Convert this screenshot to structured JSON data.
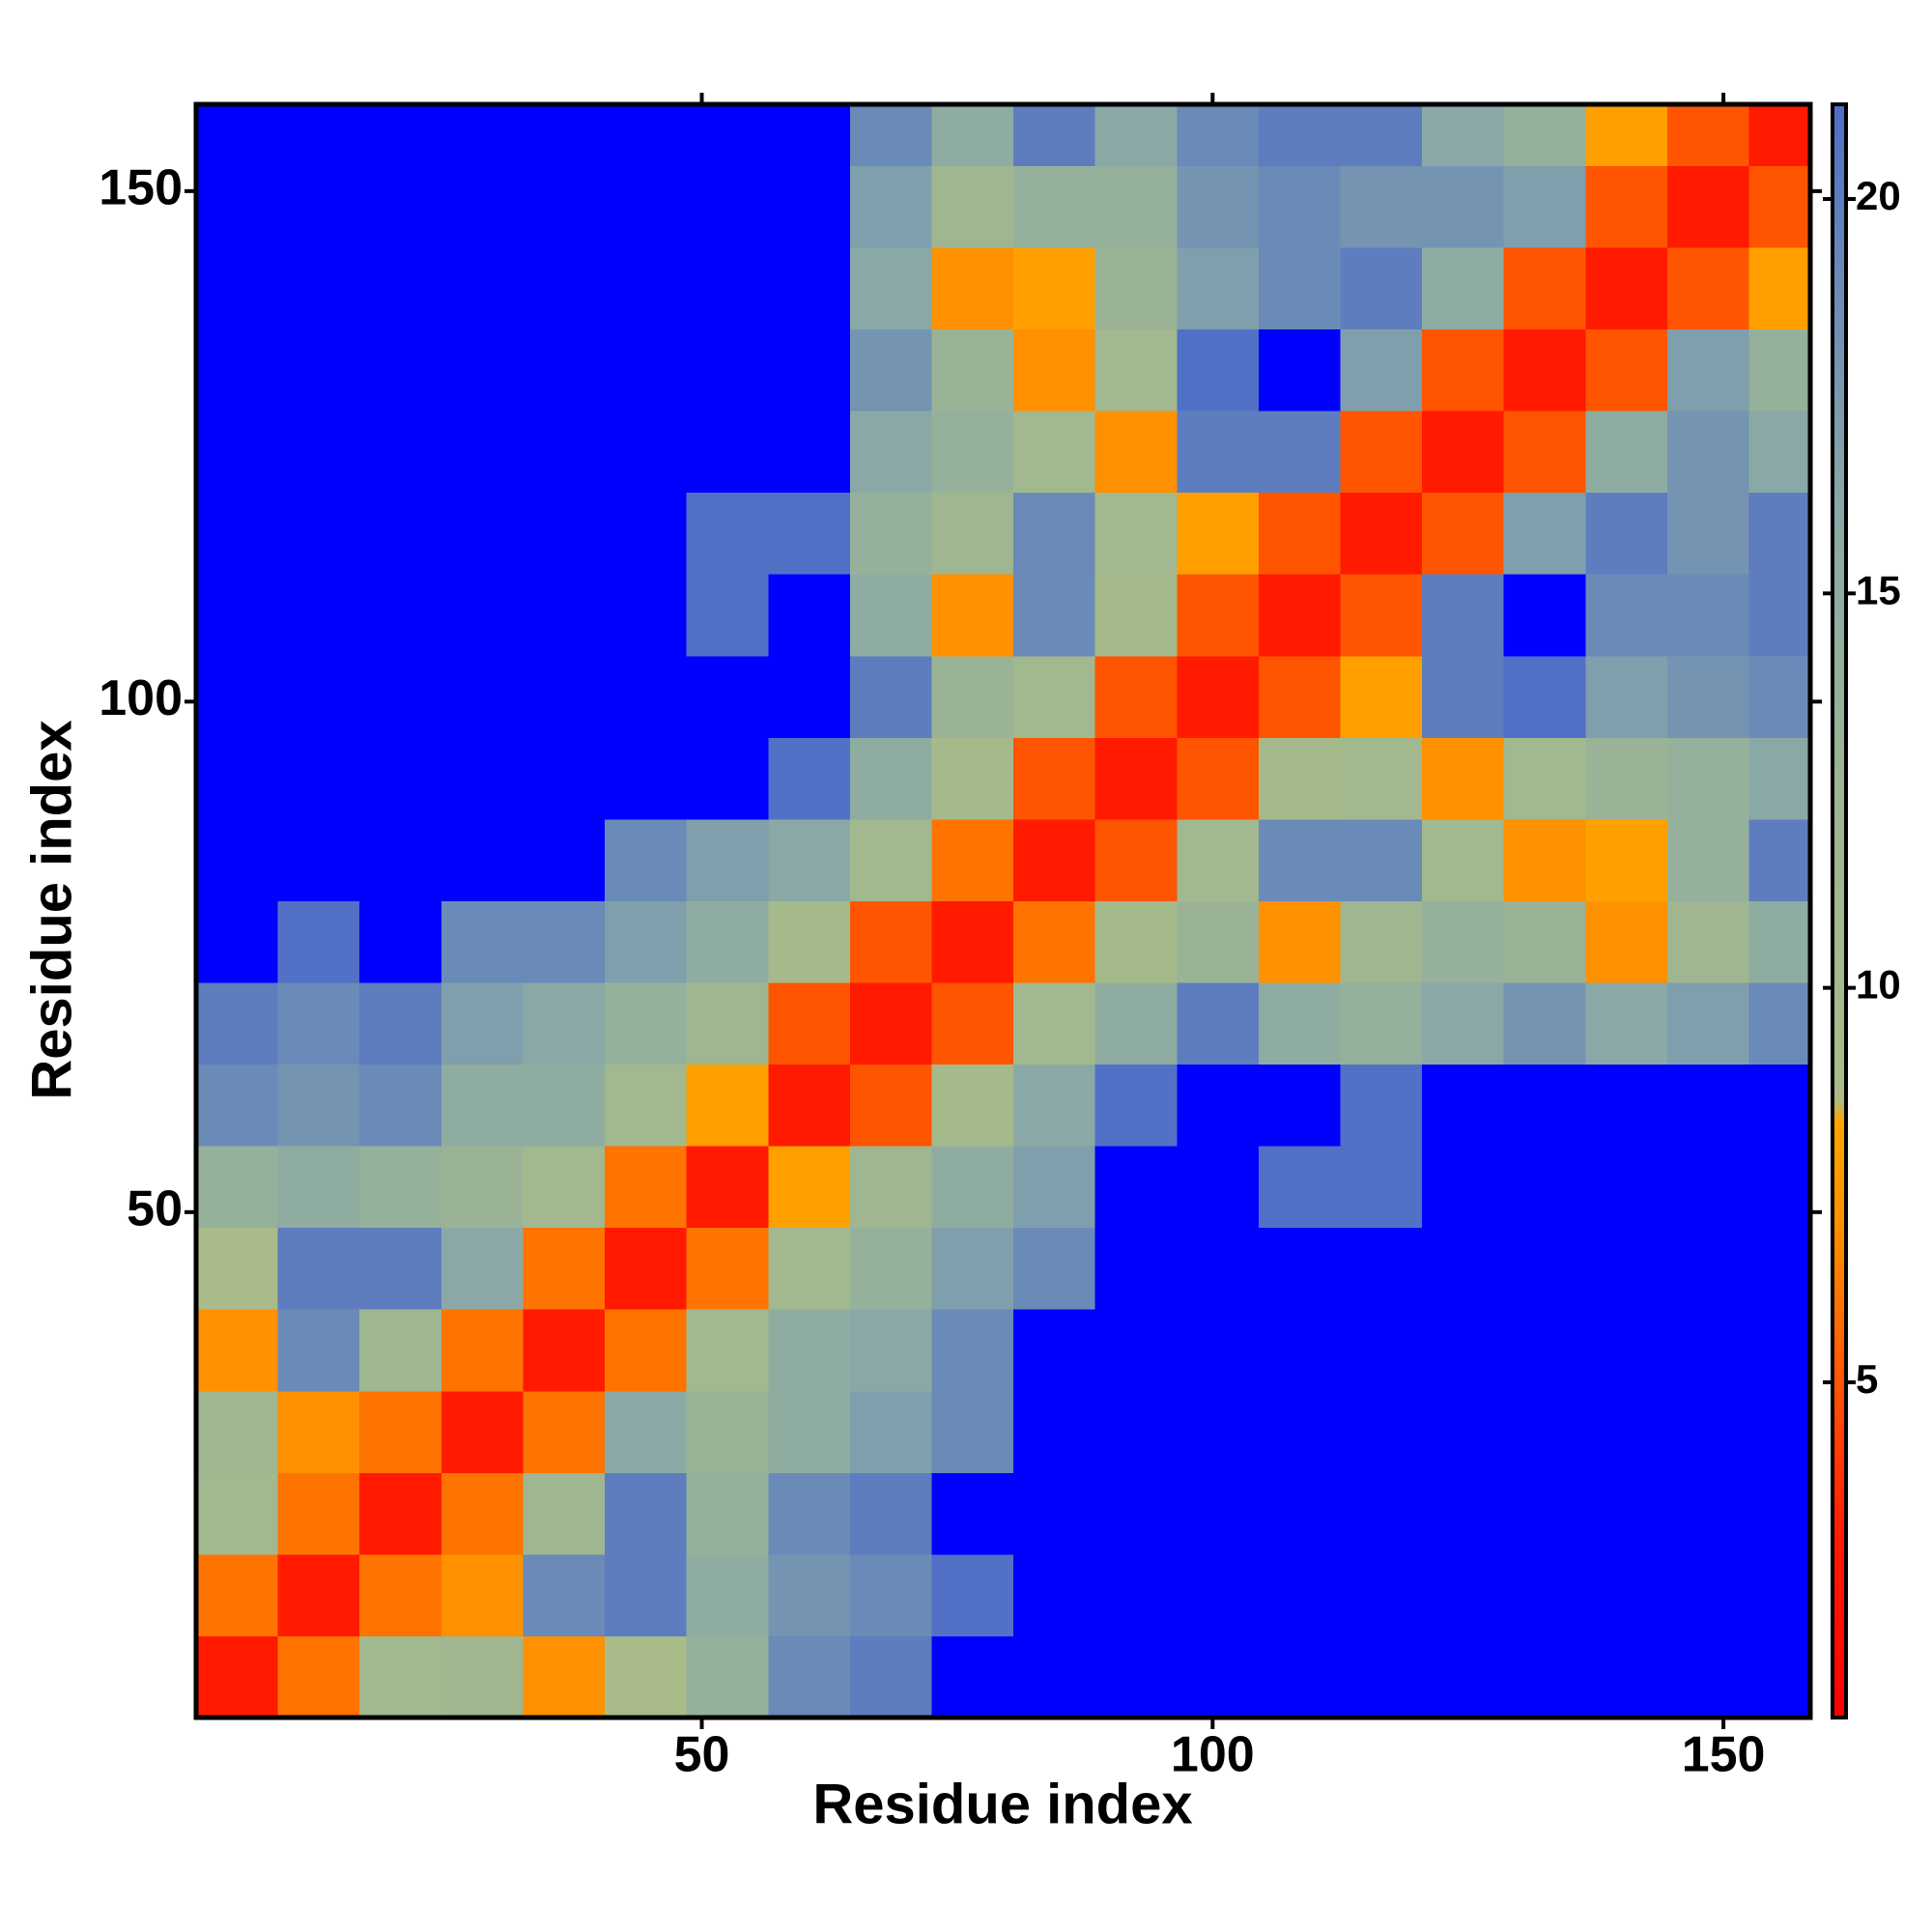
{
  "chart_data": {
    "type": "heatmap",
    "xlabel": "Residue index",
    "ylabel": "Residue index",
    "xbins": [
      0.5,
      8.5,
      16.5,
      24.5,
      32.5,
      40.5,
      48.5,
      56.5,
      64.5,
      72.5,
      80.5,
      88.5,
      96.5,
      104.5,
      112.5,
      120.5,
      128.5,
      136.5,
      144.5,
      152.5,
      158.5
    ],
    "ybins": [
      0.5,
      8.5,
      16.5,
      24.5,
      32.5,
      40.5,
      48.5,
      56.5,
      64.5,
      72.5,
      80.5,
      88.5,
      96.5,
      104.5,
      112.5,
      120.5,
      128.5,
      136.5,
      144.5,
      152.5,
      158.5
    ],
    "xlim": [
      0.5,
      158.5
    ],
    "ylim": [
      0.5,
      158.5
    ],
    "xticks": [
      50,
      100,
      150
    ],
    "yticks": [
      50,
      100,
      150
    ],
    "values": [
      [
        3,
        6,
        11,
        12,
        7,
        9,
        14,
        19,
        20,
        22,
        25,
        25,
        25,
        25,
        25,
        25,
        25,
        25,
        25,
        25
      ],
      [
        6,
        3,
        6,
        7,
        19,
        20,
        15,
        18,
        19,
        21,
        25,
        25,
        25,
        25,
        25,
        25,
        25,
        25,
        25,
        25
      ],
      [
        11,
        6,
        3,
        6,
        12,
        20,
        14,
        19,
        20,
        22,
        25,
        25,
        25,
        25,
        25,
        25,
        25,
        25,
        25,
        25
      ],
      [
        12,
        7,
        6,
        3,
        6,
        16,
        13,
        15,
        17,
        19,
        25,
        25,
        25,
        25,
        25,
        25,
        25,
        25,
        25,
        25
      ],
      [
        7,
        19,
        12,
        6,
        3,
        6,
        11,
        15,
        16,
        19,
        22,
        25,
        25,
        25,
        25,
        25,
        25,
        25,
        25,
        25
      ],
      [
        9,
        20,
        20,
        16,
        6,
        3,
        6,
        11,
        14,
        17,
        19,
        25,
        25,
        25,
        22,
        25,
        25,
        25,
        25,
        25
      ],
      [
        14,
        15,
        14,
        13,
        11,
        6,
        3,
        8,
        12,
        15,
        17,
        22,
        25,
        21,
        21,
        25,
        25,
        25,
        25,
        25
      ],
      [
        19,
        18,
        19,
        15,
        15,
        11,
        8,
        3,
        5,
        10,
        16,
        21,
        24,
        22,
        21,
        25,
        25,
        25,
        25,
        25
      ],
      [
        20,
        19,
        20,
        17,
        16,
        14,
        12,
        5,
        3,
        5,
        11,
        15,
        20,
        15,
        14,
        16,
        18,
        16,
        17,
        19
      ],
      [
        22,
        21,
        22,
        19,
        19,
        17,
        15,
        10,
        5,
        3,
        6,
        10,
        13,
        7,
        12,
        14,
        13,
        7,
        12,
        15
      ],
      [
        25,
        25,
        25,
        25,
        22,
        19,
        17,
        16,
        11,
        6,
        3,
        5,
        11,
        19,
        19,
        11,
        7,
        8,
        14,
        20
      ],
      [
        25,
        25,
        25,
        25,
        25,
        25,
        22,
        21,
        15,
        10,
        5,
        3,
        5,
        10,
        11,
        7,
        11,
        13,
        14,
        16
      ],
      [
        25,
        25,
        25,
        25,
        25,
        25,
        25,
        24,
        20,
        13,
        11,
        5,
        3,
        5,
        8,
        20,
        21,
        17,
        18,
        19
      ],
      [
        25,
        25,
        25,
        25,
        25,
        25,
        21,
        22,
        15,
        7,
        19,
        10,
        5,
        3,
        5,
        20,
        22,
        19,
        19,
        20
      ],
      [
        25,
        25,
        25,
        25,
        25,
        22,
        21,
        21,
        14,
        12,
        19,
        11,
        8,
        5,
        3,
        5,
        17,
        20,
        18,
        20
      ],
      [
        25,
        25,
        25,
        25,
        25,
        25,
        25,
        25,
        16,
        14,
        11,
        7,
        20,
        20,
        5,
        3,
        5,
        15,
        18,
        16
      ],
      [
        25,
        25,
        25,
        25,
        25,
        25,
        25,
        25,
        18,
        13,
        7,
        11,
        21,
        22,
        17,
        5,
        3,
        5,
        17,
        14
      ],
      [
        25,
        25,
        25,
        25,
        25,
        25,
        25,
        25,
        16,
        7,
        8,
        13,
        17,
        19,
        20,
        15,
        5,
        3,
        5,
        8
      ],
      [
        25,
        25,
        25,
        25,
        25,
        25,
        25,
        25,
        17,
        12,
        14,
        14,
        18,
        19,
        18,
        18,
        17,
        5,
        3,
        5
      ],
      [
        25,
        25,
        25,
        25,
        25,
        25,
        25,
        25,
        19,
        15,
        20,
        16,
        19,
        20,
        20,
        16,
        14,
        8,
        5,
        3
      ]
    ],
    "colorbar": {
      "lim": [
        0.75,
        21.2
      ],
      "ticks": [
        5,
        10,
        15,
        20
      ],
      "stops": [
        {
          "value": 0.75,
          "color": "#ff0000"
        },
        {
          "value": 3,
          "color": "#ff1a00"
        },
        {
          "value": 5,
          "color": "#ff5500"
        },
        {
          "value": 7,
          "color": "#ff9000"
        },
        {
          "value": 8.3,
          "color": "#ffa500"
        },
        {
          "value": 8.6,
          "color": "#a9bc88"
        },
        {
          "value": 12,
          "color": "#9fb690"
        },
        {
          "value": 16,
          "color": "#8aa9a6"
        },
        {
          "value": 19,
          "color": "#6a8ab8"
        },
        {
          "value": 21.2,
          "color": "#4e6ec8"
        }
      ],
      "over_color": "#0000ff"
    }
  }
}
